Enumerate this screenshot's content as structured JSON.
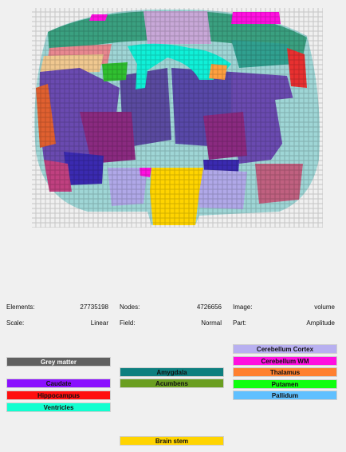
{
  "info": {
    "elements_label": "Elements:",
    "elements_value": "27735198",
    "nodes_label": "Nodes:",
    "nodes_value": "4726656",
    "image_label": "Image:",
    "image_value": "volume",
    "scale_label": "Scale:",
    "scale_value": "Linear",
    "field_label": "Field:",
    "field_value": "Normal",
    "part_label": "Part:",
    "part_value": "Amplitude"
  },
  "legend": {
    "grey_matter": "Grey matter",
    "caudate": "Caudate",
    "hippocampus": "Hippocampus",
    "ventricles": "Ventricles",
    "amygdala": "Amygdala",
    "acumbens": "Acumbens",
    "brain_stem": "Brain stem",
    "cerebellum_cortex": "Cerebellum Cortex",
    "cerebellum_wm": "Cerebellum WM",
    "thalamus": "Thalamus",
    "putamen": "Putamen",
    "pallidum": "Pallidum"
  },
  "colors": {
    "grey_matter": "#606060",
    "caudate": "#8a10ff",
    "hippocampus": "#ff1010",
    "ventricles": "#10ffd0",
    "amygdala": "#0e7f7f",
    "acumbens": "#6a9e20",
    "brain_stem": "#ffd400",
    "cerebellum_cortex": "#b8b0f0",
    "cerebellum_wm": "#ff10e0",
    "thalamus": "#ff8030",
    "putamen": "#10ff10",
    "pallidum": "#60c0ff"
  }
}
